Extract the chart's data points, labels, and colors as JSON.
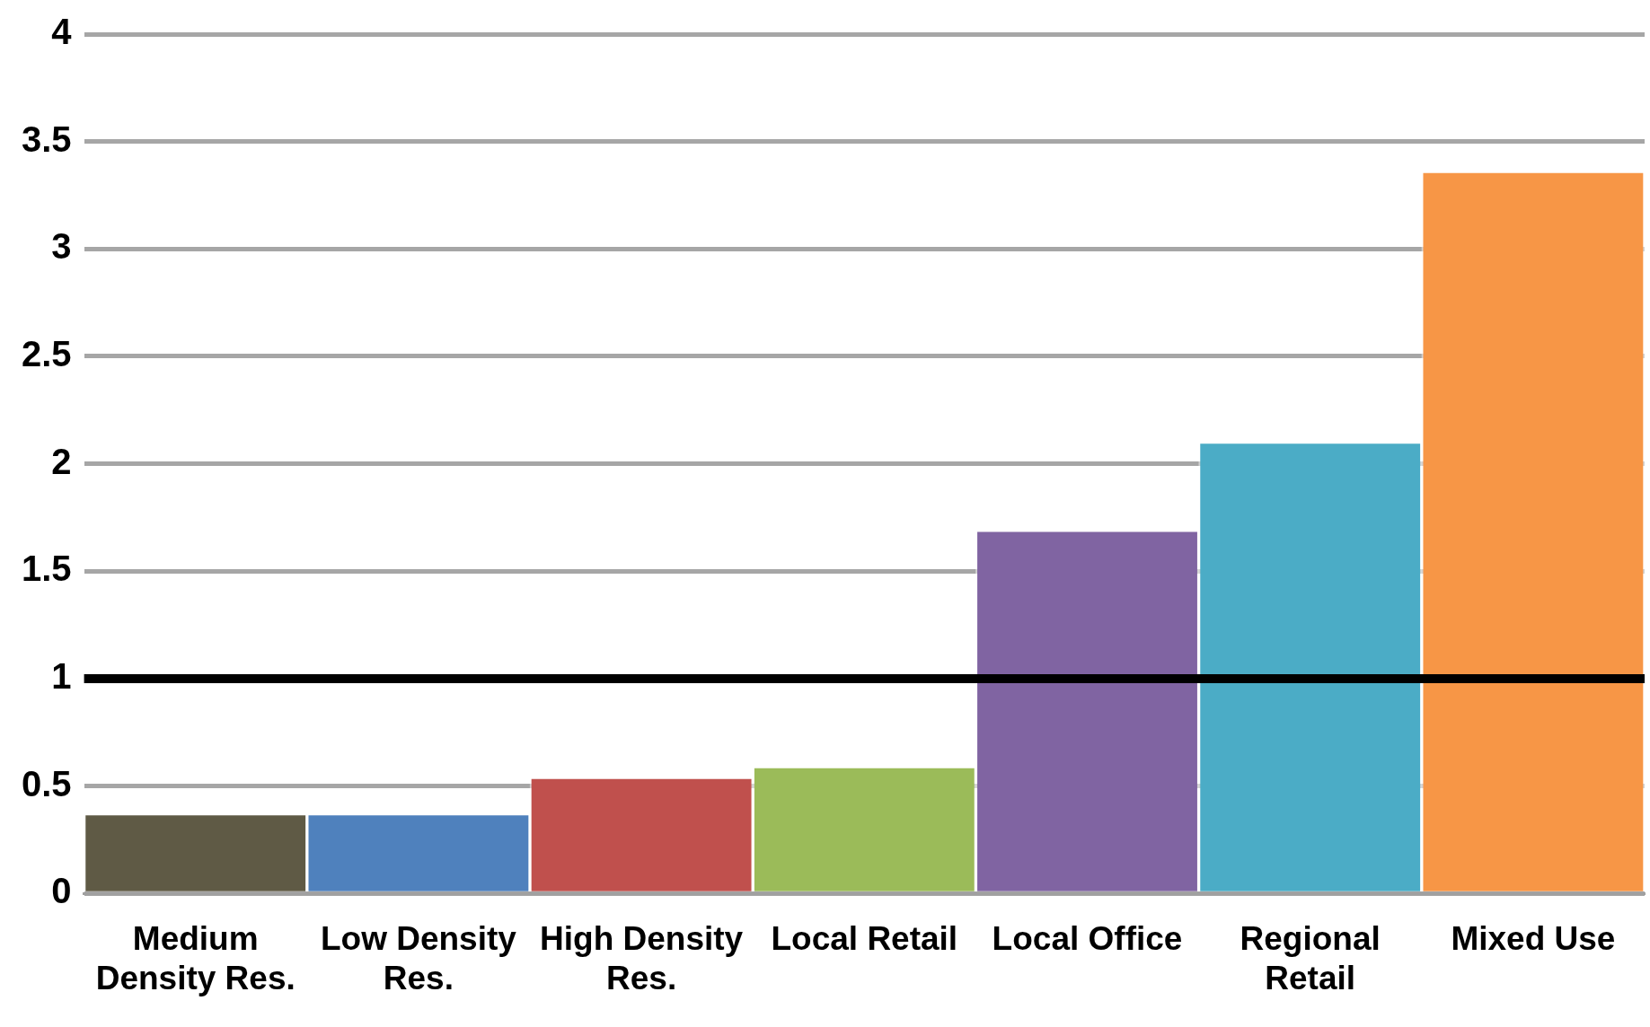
{
  "chart_data": {
    "type": "bar",
    "categories": [
      "Medium Density Res.",
      "Low Density Res.",
      "High Density Res.",
      "Local Retail",
      "Local Office",
      "Regional Retail",
      "Mixed Use"
    ],
    "values": [
      0.37,
      0.37,
      0.54,
      0.59,
      1.69,
      2.1,
      3.36
    ],
    "colors": [
      "#5f5a45",
      "#4f81bd",
      "#c0504d",
      "#9bbb59",
      "#8064a2",
      "#4bacc6",
      "#f79646"
    ],
    "ylim": [
      0,
      4
    ],
    "yticks": [
      0,
      0.5,
      1,
      1.5,
      2,
      2.5,
      3,
      3.5,
      4
    ],
    "grid": "y",
    "legend": false,
    "ref_lines": [
      {
        "axis": "y",
        "value": 1,
        "color": "#000000"
      }
    ]
  }
}
